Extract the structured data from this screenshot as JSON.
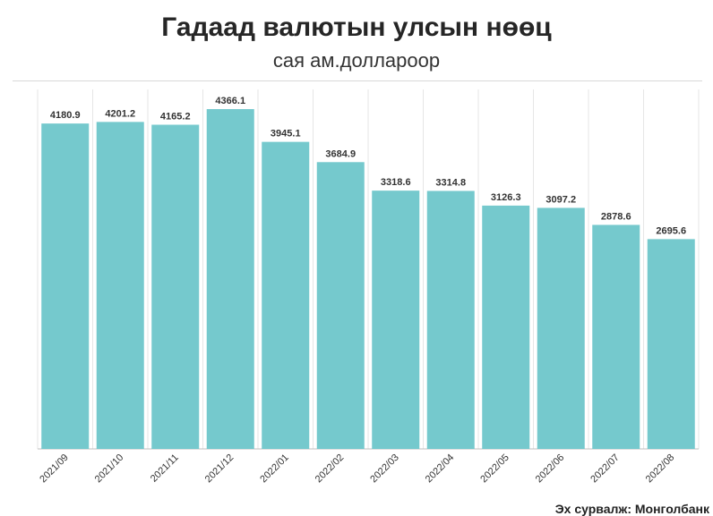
{
  "title": "Гадаад валютын улсын нөөц",
  "subtitle": "сая ам.доллароор",
  "source": "Эх сурвалж: Монголбанк",
  "colors": {
    "bar": "#75c9cd",
    "label": "#333333",
    "grid": "#e6e6e6",
    "axis": "#bfbfbf"
  },
  "chart_data": {
    "type": "bar",
    "title": "Гадаад валютын улсын нөөц",
    "subtitle": "сая ам.доллароор",
    "categories": [
      "2021/09",
      "2021/10",
      "2021/11",
      "2021/12",
      "2022/01",
      "2022/02",
      "2022/03",
      "2022/04",
      "2022/05",
      "2022/06",
      "2022/07",
      "2022/08"
    ],
    "values": [
      4180.9,
      4201.2,
      4165.2,
      4366.1,
      3945.1,
      3684.9,
      3318.6,
      3314.8,
      3126.3,
      3097.2,
      2878.6,
      2695.6
    ],
    "data_labels": [
      "4180.9",
      "4201.2",
      "4165.2",
      "4366.1",
      "3945.1",
      "3684.9",
      "3318.6",
      "3314.8",
      "3126.3",
      "3097.2",
      "2878.6",
      "2695.6"
    ],
    "ylim": [
      0,
      4366.1
    ],
    "y_axis_visible": false,
    "grid": "vertical",
    "legend": "none"
  }
}
